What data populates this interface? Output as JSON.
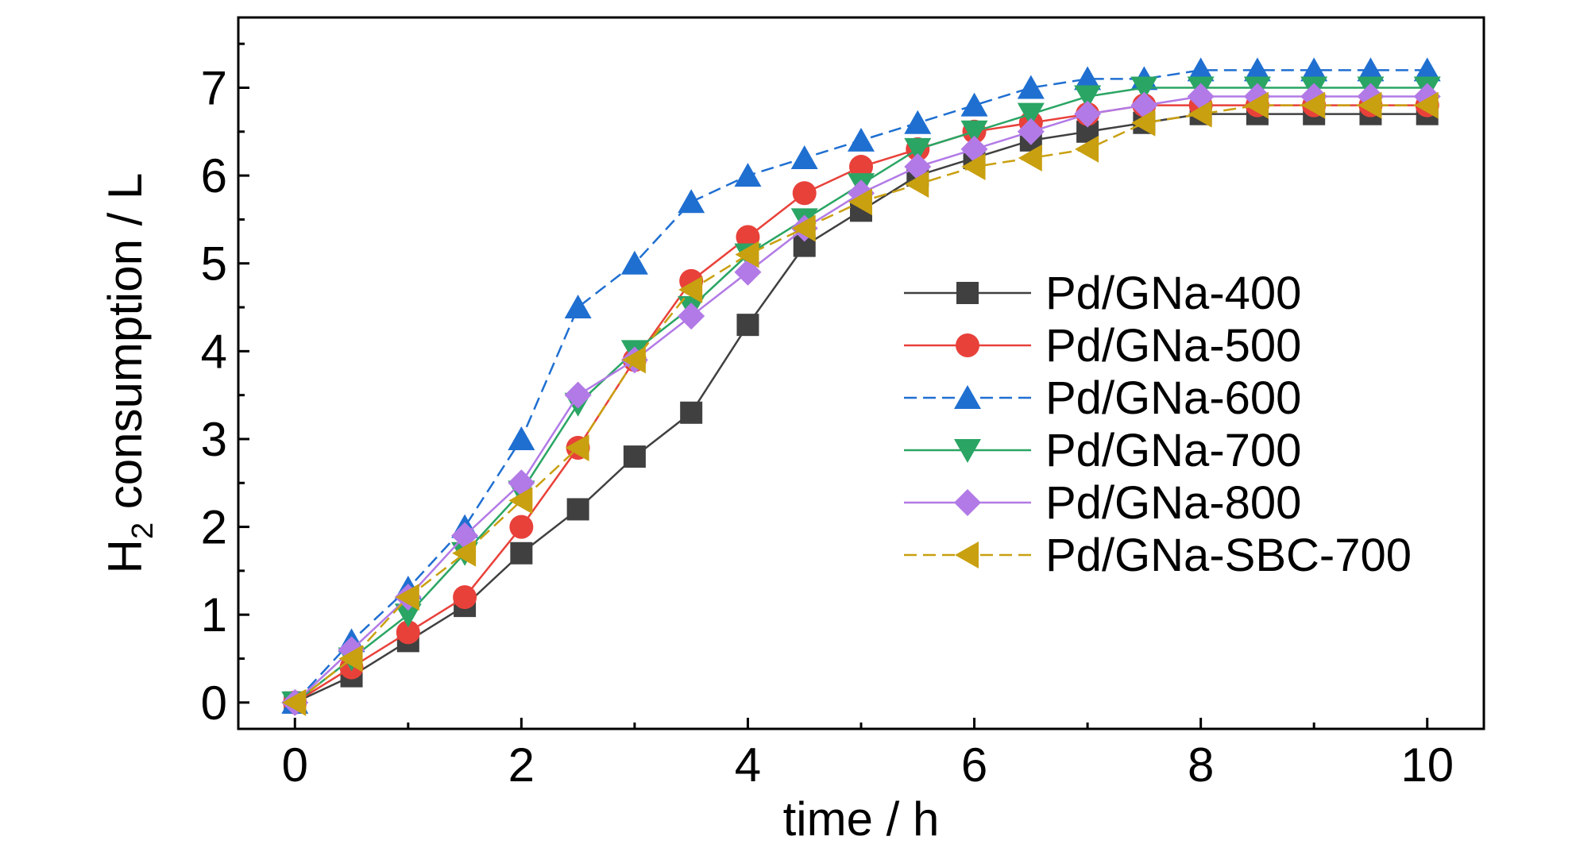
{
  "chart_data": {
    "type": "line",
    "xlabel": "time / h",
    "ylabel_main": "H",
    "ylabel_sub": "2",
    "ylabel_rest": " consumption / L",
    "xlim": [
      -0.5,
      10.5
    ],
    "ylim": [
      -0.3,
      7.8
    ],
    "xticks": [
      0,
      2,
      4,
      6,
      8,
      10
    ],
    "yticks": [
      0,
      1,
      2,
      3,
      4,
      5,
      6,
      7
    ],
    "grid": false,
    "legend_position": "right-middle",
    "x": [
      0,
      0.5,
      1,
      1.5,
      2,
      2.5,
      3,
      3.5,
      4,
      4.5,
      5,
      5.5,
      6,
      6.5,
      7,
      7.5,
      8,
      8.5,
      9,
      9.5,
      10
    ],
    "series": [
      {
        "name": "Pd/GNa-400",
        "color": "#404040",
        "marker": "square",
        "dashed": false,
        "values": [
          0,
          0.3,
          0.7,
          1.1,
          1.7,
          2.2,
          2.8,
          3.3,
          4.3,
          5.2,
          5.6,
          6.0,
          6.2,
          6.4,
          6.5,
          6.6,
          6.7,
          6.7,
          6.7,
          6.7,
          6.7
        ]
      },
      {
        "name": "Pd/GNa-500",
        "color": "#e8413a",
        "marker": "circle",
        "dashed": false,
        "values": [
          0,
          0.4,
          0.8,
          1.2,
          2.0,
          2.9,
          3.9,
          4.8,
          5.3,
          5.8,
          6.1,
          6.3,
          6.5,
          6.6,
          6.7,
          6.8,
          6.8,
          6.8,
          6.8,
          6.8,
          6.8
        ]
      },
      {
        "name": "Pd/GNa-600",
        "color": "#1f6fd1",
        "marker": "triangle-up",
        "dashed": true,
        "values": [
          0,
          0.7,
          1.3,
          2.0,
          3.0,
          4.5,
          5.0,
          5.7,
          6.0,
          6.2,
          6.4,
          6.6,
          6.8,
          7.0,
          7.1,
          7.1,
          7.2,
          7.2,
          7.2,
          7.2,
          7.2
        ]
      },
      {
        "name": "Pd/GNa-700",
        "color": "#2aa564",
        "marker": "triangle-down",
        "dashed": false,
        "values": [
          0,
          0.5,
          1.0,
          1.7,
          2.4,
          3.4,
          4.0,
          4.5,
          5.1,
          5.5,
          5.9,
          6.3,
          6.5,
          6.7,
          6.9,
          7.0,
          7.0,
          7.0,
          7.0,
          7.0,
          7.0
        ]
      },
      {
        "name": "Pd/GNa-800",
        "color": "#b27ae6",
        "marker": "diamond",
        "dashed": false,
        "values": [
          0,
          0.6,
          1.2,
          1.9,
          2.5,
          3.5,
          3.9,
          4.4,
          4.9,
          5.4,
          5.8,
          6.1,
          6.3,
          6.5,
          6.7,
          6.8,
          6.9,
          6.9,
          6.9,
          6.9,
          6.9
        ]
      },
      {
        "name": "Pd/GNa-SBC-700",
        "color": "#c9a010",
        "marker": "triangle-left",
        "dashed": true,
        "values": [
          0,
          0.5,
          1.2,
          1.7,
          2.3,
          2.9,
          3.9,
          4.7,
          5.1,
          5.4,
          5.7,
          5.9,
          6.1,
          6.2,
          6.3,
          6.6,
          6.7,
          6.8,
          6.8,
          6.8,
          6.8
        ]
      }
    ]
  }
}
